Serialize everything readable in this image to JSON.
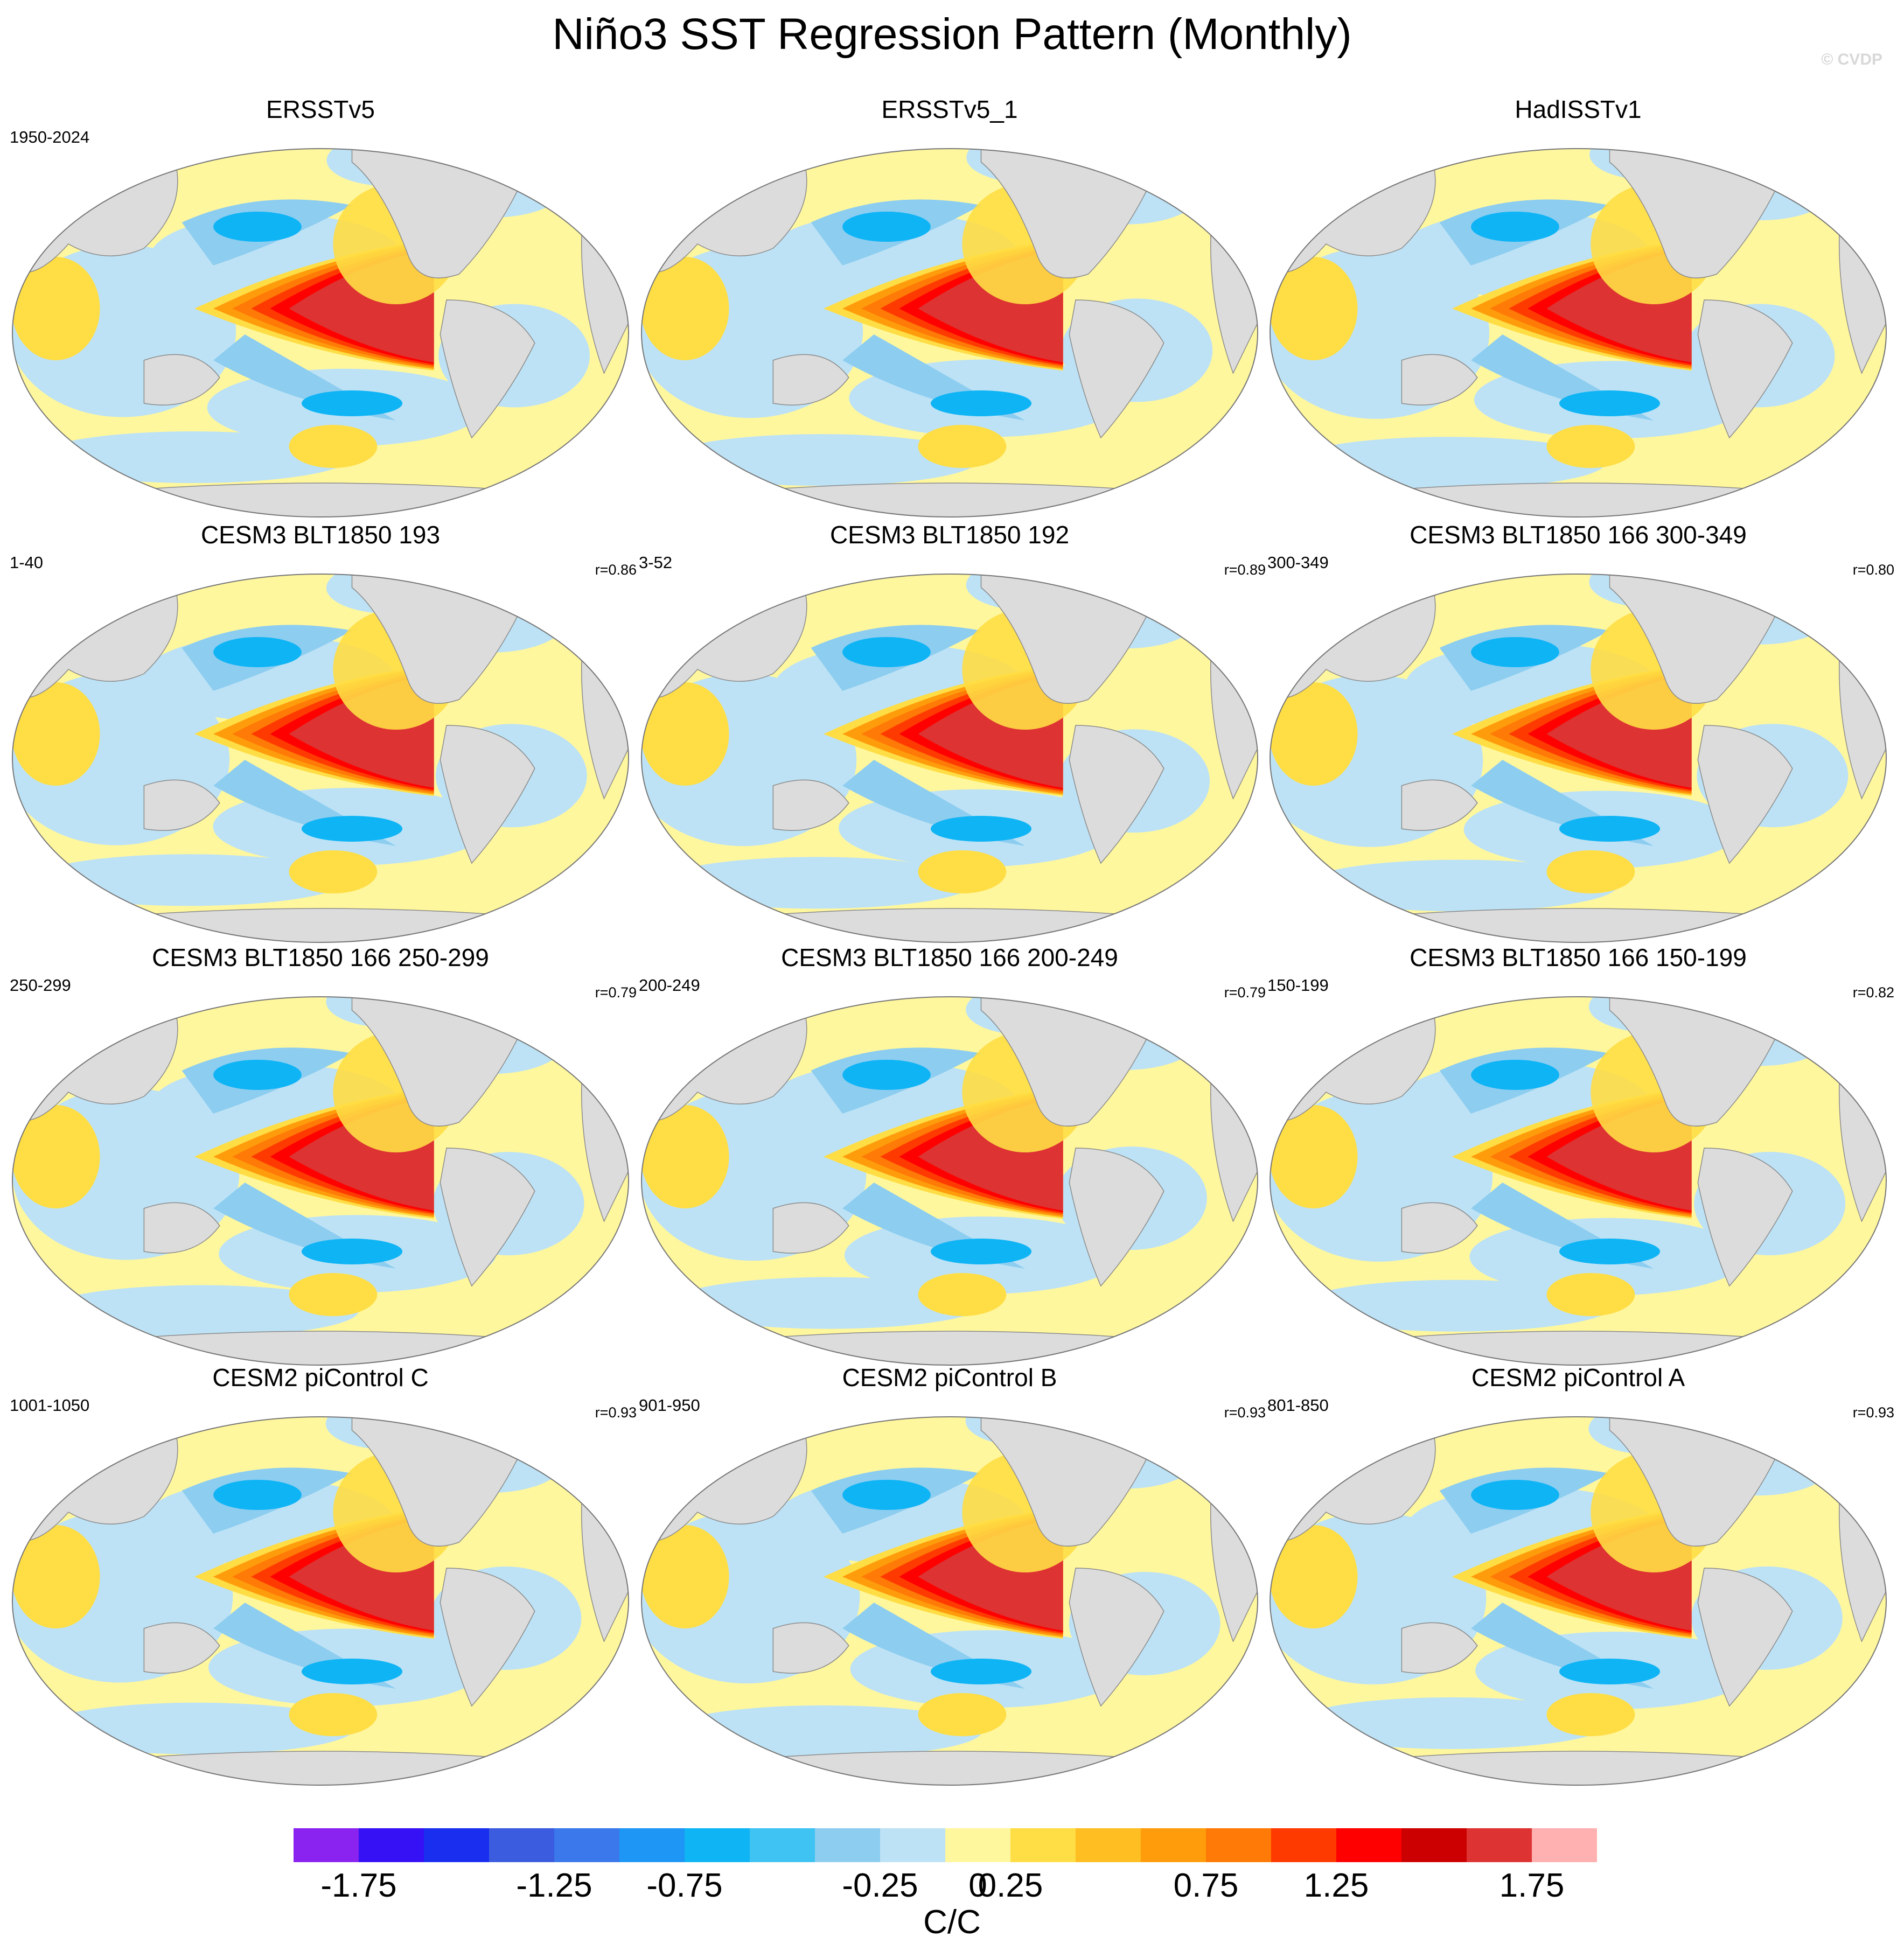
{
  "title": "Niño3 SST Regression Pattern (Monthly)",
  "watermark": "© CVDP",
  "panels": [
    {
      "title": "ERSSTv5",
      "period": "1950-2024",
      "r": ""
    },
    {
      "title": "ERSSTv5_1",
      "period": "",
      "r": ""
    },
    {
      "title": "HadISSTv1",
      "period": "",
      "r": ""
    },
    {
      "title": "CESM3 BLT1850 193",
      "period": "1-40",
      "r": "r=0.86"
    },
    {
      "title": "CESM3 BLT1850 192",
      "period": "3-52",
      "r": "r=0.89"
    },
    {
      "title": "CESM3 BLT1850 166 300-349",
      "period": "300-349",
      "r": "r=0.80"
    },
    {
      "title": "CESM3 BLT1850 166 250-299",
      "period": "250-299",
      "r": "r=0.79"
    },
    {
      "title": "CESM3 BLT1850 166 200-249",
      "period": "200-249",
      "r": "r=0.79"
    },
    {
      "title": "CESM3 BLT1850 166 150-199",
      "period": "150-199",
      "r": "r=0.82"
    },
    {
      "title": "CESM2 piControl C",
      "period": "1001-1050",
      "r": "r=0.93"
    },
    {
      "title": "CESM2 piControl B",
      "period": "901-950",
      "r": "r=0.93"
    },
    {
      "title": "CESM2 piControl A",
      "period": "801-850",
      "r": "r=0.93"
    }
  ],
  "chart_data": {
    "type": "heatmap",
    "title": "Niño3 SST Regression Pattern (Monthly)",
    "projection": "robinson-like global map, Pacific-centered",
    "colorbar": {
      "unit": "C/C",
      "levels": [
        -2.0,
        -1.75,
        -1.5,
        -1.25,
        -1.0,
        -0.75,
        -0.5,
        -0.25,
        0,
        0.25,
        0.5,
        0.75,
        1.0,
        1.25,
        1.5,
        1.75,
        2.0
      ],
      "tick_labels": [
        "-1.75",
        "-1.25",
        "-0.75",
        "-0.25",
        "0",
        "0.25",
        "0.75",
        "1.25",
        "1.75"
      ],
      "tick_values": [
        -1.75,
        -1.25,
        -0.75,
        -0.25,
        0,
        0.25,
        0.75,
        1.25,
        1.75
      ],
      "colors": [
        "#8a23f0",
        "#3611f5",
        "#1a2ef0",
        "#3c5ce0",
        "#3a78ec",
        "#1e96f5",
        "#0fb4f5",
        "#3ec3f3",
        "#8dcdf0",
        "#bde2f5",
        "#fff79e",
        "#ffdd44",
        "#ffbe22",
        "#ff9c0c",
        "#ff7a06",
        "#ff3a00",
        "#ff0000",
        "#cc0000",
        "#dd3333",
        "#ffb0b0"
      ]
    },
    "pattern": {
      "description": "Positive SST regression in eastern equatorial Pacific (max ~1.5-1.75), negative horseshoe in western/central Pacific (~-0.5 to -0.75)",
      "equatorial_max": 1.6,
      "horseshoe_min": -0.6
    }
  }
}
